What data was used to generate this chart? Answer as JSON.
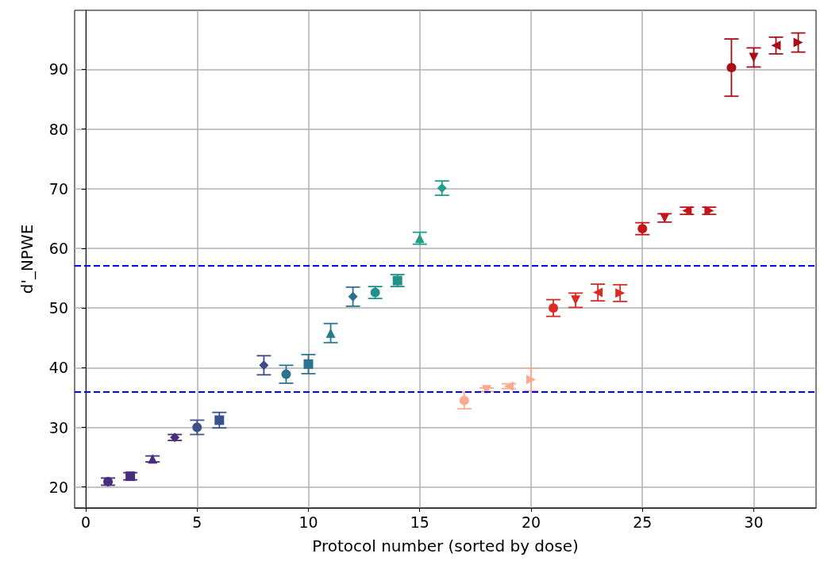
{
  "chart_data": {
    "type": "scatter",
    "xlabel": "Protocol number (sorted by dose)",
    "ylabel": "d'_NPWE",
    "xlim": [
      -0.5,
      32.8
    ],
    "ylim": [
      16.5,
      99.9
    ],
    "xticks": [
      0,
      5,
      10,
      15,
      20,
      25,
      30
    ],
    "yticks": [
      20,
      30,
      40,
      50,
      60,
      70,
      80,
      90
    ],
    "grid": true,
    "ref_lines": [
      {
        "axis": "y",
        "value": 57.1,
        "color": "#0000ff",
        "line_style": "dashed"
      },
      {
        "axis": "y",
        "value": 36,
        "color": "#0000ff",
        "line_style": "dashed"
      }
    ],
    "series": [
      {
        "x": [
          1
        ],
        "values": [
          20.9
        ],
        "errors": [
          0.6
        ],
        "color": "#472d7b",
        "marker": "circle"
      },
      {
        "x": [
          2
        ],
        "values": [
          21.8
        ],
        "errors": [
          0.6
        ],
        "color": "#472d7b",
        "marker": "square"
      },
      {
        "x": [
          3
        ],
        "values": [
          24.7
        ],
        "errors": [
          0.5
        ],
        "color": "#472d7b",
        "marker": "triangle"
      },
      {
        "x": [
          4
        ],
        "values": [
          28.3
        ],
        "errors": [
          0.5
        ],
        "color": "#472d7b",
        "marker": "diamond"
      },
      {
        "x": [
          5
        ],
        "values": [
          30.0
        ],
        "errors": [
          1.2
        ],
        "color": "#3b528b",
        "marker": "circle"
      },
      {
        "x": [
          6
        ],
        "values": [
          31.2
        ],
        "errors": [
          1.3
        ],
        "color": "#3b528b",
        "marker": "square"
      },
      {
        "x": [
          8
        ],
        "values": [
          40.4
        ],
        "errors": [
          1.6
        ],
        "color": "#3e4a89",
        "marker": "diamond"
      },
      {
        "x": [
          9
        ],
        "values": [
          38.9
        ],
        "errors": [
          1.5
        ],
        "color": "#2c728e",
        "marker": "circle"
      },
      {
        "x": [
          10
        ],
        "values": [
          40.6
        ],
        "errors": [
          1.6
        ],
        "color": "#2c728e",
        "marker": "square"
      },
      {
        "x": [
          11
        ],
        "values": [
          45.8
        ],
        "errors": [
          1.6
        ],
        "color": "#2a788e",
        "marker": "triangle"
      },
      {
        "x": [
          12
        ],
        "values": [
          51.9
        ],
        "errors": [
          1.6
        ],
        "color": "#2d6f8e",
        "marker": "diamond"
      },
      {
        "x": [
          13
        ],
        "values": [
          52.6
        ],
        "errors": [
          1.0
        ],
        "color": "#21918c",
        "marker": "circle"
      },
      {
        "x": [
          14
        ],
        "values": [
          54.6
        ],
        "errors": [
          1.0
        ],
        "color": "#21918c",
        "marker": "square"
      },
      {
        "x": [
          15
        ],
        "values": [
          61.7
        ],
        "errors": [
          1.0
        ],
        "color": "#1f9e89",
        "marker": "triangle"
      },
      {
        "x": [
          16
        ],
        "values": [
          70.1
        ],
        "errors": [
          1.2
        ],
        "color": "#1f9e89",
        "marker": "diamond"
      },
      {
        "x": [
          17
        ],
        "values": [
          34.5
        ],
        "errors": [
          1.4
        ],
        "color": "#fcaa8d",
        "marker": "circle"
      },
      {
        "x": [
          18
        ],
        "values": [
          36.3
        ],
        "errors": [
          0.3
        ],
        "color": "#fcaa8d",
        "marker": "triangle-down"
      },
      {
        "x": [
          19
        ],
        "values": [
          36.9
        ],
        "errors": [
          0.4
        ],
        "color": "#fcaa8d",
        "marker": "triangle-left"
      },
      {
        "x": [
          20
        ],
        "values": [
          38.0
        ],
        "errors": [
          1.9
        ],
        "color": "#fcaa8d",
        "marker": "triangle-right"
      },
      {
        "x": [
          21
        ],
        "values": [
          50.0
        ],
        "errors": [
          1.4
        ],
        "color": "#dc2a25",
        "marker": "circle"
      },
      {
        "x": [
          22
        ],
        "values": [
          51.3
        ],
        "errors": [
          1.2
        ],
        "color": "#dc2a25",
        "marker": "triangle-down"
      },
      {
        "x": [
          23
        ],
        "values": [
          52.6
        ],
        "errors": [
          1.4
        ],
        "color": "#dc2a25",
        "marker": "triangle-left"
      },
      {
        "x": [
          24
        ],
        "values": [
          52.5
        ],
        "errors": [
          1.4
        ],
        "color": "#dc2a25",
        "marker": "triangle-right"
      },
      {
        "x": [
          25
        ],
        "values": [
          63.3
        ],
        "errors": [
          1.0
        ],
        "color": "#c3161b",
        "marker": "circle"
      },
      {
        "x": [
          26
        ],
        "values": [
          65.1
        ],
        "errors": [
          0.7
        ],
        "color": "#c3161b",
        "marker": "triangle-down"
      },
      {
        "x": [
          27
        ],
        "values": [
          66.3
        ],
        "errors": [
          0.6
        ],
        "color": "#c3161b",
        "marker": "triangle-left"
      },
      {
        "x": [
          28
        ],
        "values": [
          66.3
        ],
        "errors": [
          0.6
        ],
        "color": "#c3161b",
        "marker": "triangle-right"
      },
      {
        "x": [
          29
        ],
        "values": [
          90.3
        ],
        "errors": [
          4.8
        ],
        "color": "#a50f15",
        "marker": "circle"
      },
      {
        "x": [
          30
        ],
        "values": [
          92.0
        ],
        "errors": [
          1.6
        ],
        "color": "#a50f15",
        "marker": "triangle-down"
      },
      {
        "x": [
          31
        ],
        "values": [
          94.0
        ],
        "errors": [
          1.4
        ],
        "color": "#a50f15",
        "marker": "triangle-left"
      },
      {
        "x": [
          32
        ],
        "values": [
          94.5
        ],
        "errors": [
          1.6
        ],
        "color": "#a50f15",
        "marker": "triangle-right"
      }
    ]
  }
}
